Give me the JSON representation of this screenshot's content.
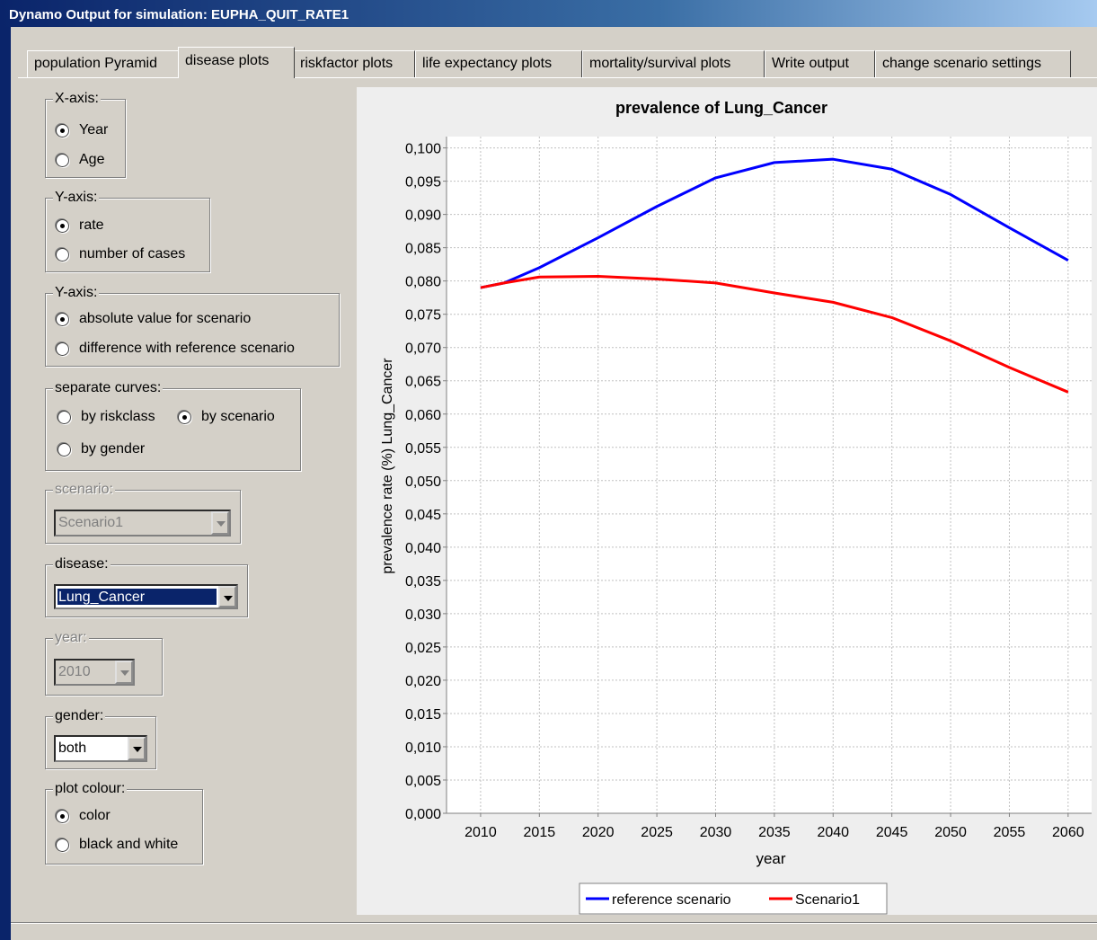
{
  "window": {
    "title": "Dynamo Output for simulation:  EUPHA_QUIT_RATE1"
  },
  "tabs": [
    {
      "label": "population Pyramid",
      "selected": false
    },
    {
      "label": "disease plots",
      "selected": true
    },
    {
      "label": "riskfactor plots",
      "selected": false
    },
    {
      "label": "life expectancy plots",
      "selected": false
    },
    {
      "label": "mortality/survival plots",
      "selected": false
    },
    {
      "label": "Write output",
      "selected": false
    },
    {
      "label": "change scenario settings",
      "selected": false
    }
  ],
  "groups": [
    {
      "label": "X-axis:",
      "options": [
        {
          "label": "Year",
          "selected": true
        },
        {
          "label": "Age",
          "selected": false
        }
      ]
    },
    {
      "label": "Y-axis:",
      "options": [
        {
          "label": "rate",
          "selected": true
        },
        {
          "label": "number of cases",
          "selected": false
        }
      ]
    },
    {
      "label": "Y-axis:",
      "options": [
        {
          "label": "absolute value for scenario",
          "selected": true
        },
        {
          "label": "difference with reference scenario",
          "selected": false
        }
      ]
    },
    {
      "label": "separate curves:",
      "options": [
        {
          "label": "by riskclass",
          "selected": false
        },
        {
          "label": "by scenario",
          "selected": true
        },
        {
          "label": "by gender",
          "selected": false
        }
      ]
    },
    {
      "label": "scenario:",
      "value": "Scenario1",
      "enabled": false
    },
    {
      "label": "disease:",
      "value": "Lung_Cancer",
      "enabled": true,
      "highlighted": true
    },
    {
      "label": "year:",
      "value": "2010",
      "enabled": false
    },
    {
      "label": "gender:",
      "value": "both",
      "enabled": true
    },
    {
      "label": "plot colour:",
      "options": [
        {
          "label": "color",
          "selected": true
        },
        {
          "label": "black and white",
          "selected": false
        }
      ]
    }
  ],
  "chart_data": {
    "type": "line",
    "title": "prevalence of Lung_Cancer",
    "x_label": "year",
    "y_label": "prevalence rate (%) Lung_Cancer",
    "x": [
      2010,
      2012,
      2015,
      2020,
      2025,
      2030,
      2035,
      2040,
      2045,
      2050,
      2055,
      2060
    ],
    "series": [
      {
        "name": "reference scenario",
        "color": "#0000ff",
        "values": [
          0.079,
          0.0797,
          0.082,
          0.0865,
          0.0912,
          0.0955,
          0.0978,
          0.0983,
          0.0968,
          0.093,
          0.088,
          0.0831
        ]
      },
      {
        "name": "Scenario1",
        "color": "#ff0000",
        "values": [
          0.079,
          0.0797,
          0.0806,
          0.0807,
          0.0803,
          0.0797,
          0.0782,
          0.0768,
          0.0745,
          0.071,
          0.067,
          0.0633
        ]
      }
    ],
    "xlim": [
      2007.1,
      2062
    ],
    "ylim": [
      0,
      0.1017
    ],
    "xticks": [
      2010,
      2015,
      2020,
      2025,
      2030,
      2035,
      2040,
      2045,
      2050,
      2055,
      2060
    ],
    "yticks": [
      {
        "value": 0,
        "label": "0,000"
      },
      {
        "value": 0.005,
        "label": "0,005"
      },
      {
        "value": 0.01,
        "label": "0,010"
      },
      {
        "value": 0.015,
        "label": "0,015"
      },
      {
        "value": 0.02,
        "label": "0,020"
      },
      {
        "value": 0.025,
        "label": "0,025"
      },
      {
        "value": 0.03,
        "label": "0,030"
      },
      {
        "value": 0.035,
        "label": "0,035"
      },
      {
        "value": 0.04,
        "label": "0,040"
      },
      {
        "value": 0.045,
        "label": "0,045"
      },
      {
        "value": 0.05,
        "label": "0,050"
      },
      {
        "value": 0.055,
        "label": "0,055"
      },
      {
        "value": 0.06,
        "label": "0,060"
      },
      {
        "value": 0.065,
        "label": "0,065"
      },
      {
        "value": 0.07,
        "label": "0,070"
      },
      {
        "value": 0.075,
        "label": "0,075"
      },
      {
        "value": 0.08,
        "label": "0,080"
      },
      {
        "value": 0.085,
        "label": "0,085"
      },
      {
        "value": 0.09,
        "label": "0,090"
      },
      {
        "value": 0.095,
        "label": "0,095"
      },
      {
        "value": 0.1,
        "label": "0,100"
      }
    ],
    "grid": true,
    "legend": "bottom"
  }
}
